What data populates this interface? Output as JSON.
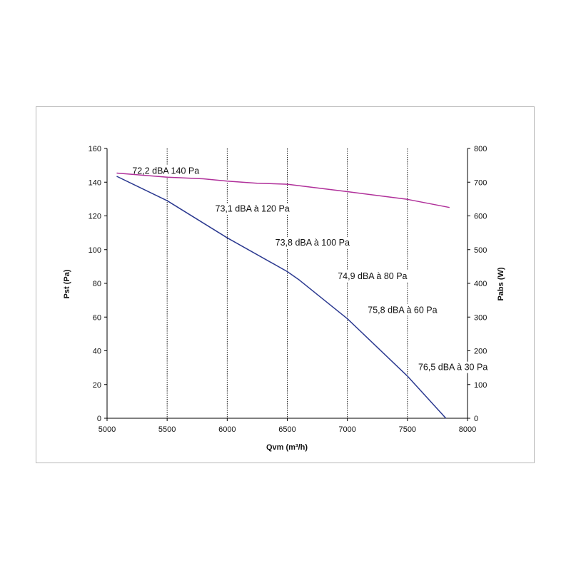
{
  "chart_data": {
    "type": "line",
    "xlabel": "Qvm (m³/h)",
    "ylabel": "Pst  (Pa)",
    "y2label": "Pabs (W)",
    "xlim": [
      5000,
      8000
    ],
    "ylim": [
      0,
      160
    ],
    "y2lim": [
      0,
      800
    ],
    "xticks": [
      5000,
      5500,
      6000,
      6500,
      7000,
      7500,
      8000
    ],
    "yticks": [
      0,
      20,
      40,
      60,
      80,
      100,
      120,
      140,
      160
    ],
    "y2ticks": [
      0,
      100,
      200,
      300,
      400,
      500,
      600,
      700,
      800
    ],
    "grid": "vertical",
    "series": [
      {
        "axis": "left",
        "color": "#2b3990",
        "x": [
          5080,
          5500,
          6000,
          6500,
          6600,
          7000,
          7500,
          7820
        ],
        "y": [
          143.5,
          129,
          107,
          87,
          82,
          59,
          25,
          0
        ]
      },
      {
        "axis": "right",
        "color": "#b0309a",
        "x": [
          5080,
          5500,
          5800,
          6000,
          6250,
          6500,
          7000,
          7500,
          7850
        ],
        "y": [
          727,
          715,
          710,
          703,
          697,
          694,
          672,
          649,
          625
        ]
      }
    ],
    "annotations": [
      {
        "text": "72,2 dBA 140 Pa",
        "x": 5210,
        "y": 145
      },
      {
        "text": "73,1 dBA à 120 Pa",
        "x": 5900,
        "y": 122.5
      },
      {
        "text": "73,8 dBA à 100 Pa",
        "x": 6400,
        "y": 102.5
      },
      {
        "text": "74,9 dBA à 80 Pa",
        "x": 6920,
        "y": 82.5
      },
      {
        "text": "75,8 dBA à 60 Pa",
        "x": 7170,
        "y": 62.5
      },
      {
        "text": "76,5 dBA à 30 Pa",
        "x": 7590,
        "y": 28.5
      }
    ]
  }
}
